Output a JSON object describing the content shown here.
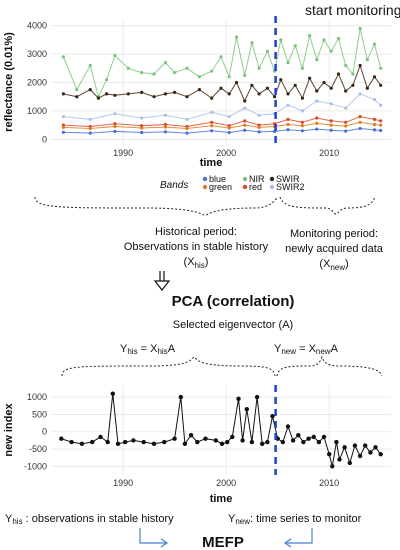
{
  "header": {
    "start_monitoring": "start monitoring"
  },
  "chart_data": [
    {
      "type": "line",
      "xlabel": "time",
      "ylabel": "reflectance (0.01%)",
      "x_ticks": [
        "1990",
        "2000",
        "2010"
      ],
      "y_ticks": [
        "0",
        "1000",
        "2000",
        "3000",
        "4000"
      ],
      "xlim": [
        1983,
        2016
      ],
      "ylim": [
        -200,
        4200
      ],
      "vline_x": 2004.8,
      "legend": {
        "title": "Bands",
        "placement": "bottom",
        "entries": [
          "blue",
          "green",
          "red",
          "NIR",
          "SWIR",
          "SWIR2"
        ]
      },
      "colors": {
        "blue": "#4a6fd8",
        "green": "#e07b20",
        "red": "#d94a2a",
        "NIR": "#7cc47a",
        "SWIR": "#3a2410",
        "SWIR2": "#a9c0e6",
        "vline": "#1f3fcf"
      },
      "series": [
        {
          "name": "NIR",
          "x": [
            1984.2,
            1985.5,
            1986.8,
            1987.6,
            1988.4,
            1989.2,
            1990.5,
            1991.8,
            1993.0,
            1994.1,
            1995.0,
            1996.2,
            1997.4,
            1998.6,
            1999.5,
            2000.3,
            2001.0,
            2001.8,
            2002.5,
            2003.2,
            2004.0,
            2004.7,
            2005.3,
            2006.0,
            2006.7,
            2007.4,
            2008.1,
            2008.8,
            2009.5,
            2010.2,
            2010.9,
            2011.6,
            2012.3,
            2013.0,
            2013.7,
            2014.4,
            2015.0
          ],
          "values": [
            2900,
            1750,
            2600,
            1500,
            2100,
            2950,
            2500,
            2350,
            2300,
            2700,
            2350,
            2500,
            2200,
            2400,
            2900,
            2200,
            3600,
            2250,
            3400,
            2500,
            3100,
            2400,
            3500,
            2700,
            3300,
            2500,
            3650,
            2800,
            3500,
            3100,
            3550,
            2600,
            2300,
            3900,
            2800,
            3350,
            2500
          ]
        },
        {
          "name": "SWIR",
          "x": [
            1984.2,
            1985.5,
            1986.8,
            1987.6,
            1988.4,
            1989.2,
            1990.5,
            1991.8,
            1993.0,
            1994.1,
            1995.0,
            1996.2,
            1997.4,
            1998.6,
            1999.5,
            2000.3,
            2001.0,
            2001.8,
            2002.5,
            2003.2,
            2004.0,
            2004.7,
            2005.3,
            2006.0,
            2006.7,
            2007.4,
            2008.1,
            2008.8,
            2009.5,
            2010.2,
            2010.9,
            2011.6,
            2012.3,
            2013.0,
            2013.7,
            2014.4,
            2015.0
          ],
          "values": [
            1600,
            1500,
            1750,
            1450,
            1600,
            1550,
            1600,
            1650,
            1500,
            1600,
            1650,
            1500,
            1750,
            1450,
            1800,
            1600,
            2000,
            1350,
            1900,
            1600,
            1800,
            1500,
            2100,
            1600,
            1900,
            1450,
            2150,
            1700,
            2000,
            1800,
            2300,
            1700,
            1900,
            2600,
            1800,
            2200,
            1900
          ]
        },
        {
          "name": "SWIR2",
          "x": [
            1984.2,
            1986.8,
            1989.2,
            1991.8,
            1994.1,
            1996.2,
            1998.6,
            2000.3,
            2001.8,
            2003.2,
            2004.7,
            2006.0,
            2007.4,
            2008.8,
            2010.2,
            2011.6,
            2013.0,
            2014.4,
            2015.0
          ],
          "values": [
            800,
            700,
            900,
            750,
            850,
            700,
            950,
            800,
            1100,
            850,
            900,
            1200,
            1000,
            1350,
            1250,
            1100,
            1600,
            1400,
            1200
          ]
        },
        {
          "name": "red",
          "x": [
            1984.2,
            1986.8,
            1989.2,
            1991.8,
            1994.1,
            1996.2,
            1998.6,
            2000.3,
            2001.8,
            2003.2,
            2004.7,
            2006.0,
            2007.4,
            2008.8,
            2010.2,
            2011.6,
            2013.0,
            2014.4,
            2015.0
          ],
          "values": [
            500,
            450,
            550,
            480,
            520,
            450,
            600,
            480,
            650,
            500,
            550,
            700,
            600,
            750,
            650,
            600,
            800,
            700,
            650
          ]
        },
        {
          "name": "green",
          "x": [
            1984.2,
            1986.8,
            1989.2,
            1991.8,
            1994.1,
            1996.2,
            1998.6,
            2000.3,
            2001.8,
            2003.2,
            2004.7,
            2006.0,
            2007.4,
            2008.8,
            2010.2,
            2011.6,
            2013.0,
            2014.4,
            2015.0
          ],
          "values": [
            420,
            380,
            450,
            400,
            430,
            380,
            480,
            400,
            500,
            420,
            450,
            520,
            480,
            560,
            500,
            470,
            600,
            520,
            500
          ]
        },
        {
          "name": "blue",
          "x": [
            1984.2,
            1986.8,
            1989.2,
            1991.8,
            1994.1,
            1996.2,
            1998.6,
            2000.3,
            2001.8,
            2003.2,
            2004.7,
            2006.0,
            2007.4,
            2008.8,
            2010.2,
            2011.6,
            2013.0,
            2014.4,
            2015.0
          ],
          "values": [
            250,
            220,
            280,
            240,
            260,
            220,
            300,
            240,
            320,
            260,
            280,
            340,
            300,
            360,
            320,
            290,
            380,
            330,
            310
          ]
        }
      ]
    },
    {
      "type": "line",
      "xlabel": "time",
      "ylabel": "new index",
      "x_ticks": [
        "1990",
        "2000",
        "2010"
      ],
      "y_ticks": [
        "-1000",
        "-500",
        "0",
        "500",
        "1000"
      ],
      "xlim": [
        1983,
        2016
      ],
      "ylim": [
        -1250,
        1350
      ],
      "vline_x": 2004.8,
      "colors": {
        "line": "#111111",
        "vline": "#1f3fcf"
      },
      "series": [
        {
          "x": [
            1984.0,
            1985.0,
            1986.0,
            1987.0,
            1987.8,
            1988.5,
            1989.0,
            1989.5,
            1990.2,
            1991.0,
            1992.0,
            1993.0,
            1994.0,
            1995.0,
            1995.6,
            1996.0,
            1996.6,
            1997.2,
            1998.0,
            1999.0,
            1999.6,
            2000.1,
            2000.6,
            2001.2,
            2001.6,
            2002.0,
            2002.5,
            2003.0,
            2003.5,
            2004.0,
            2004.5,
            2005.0,
            2005.5,
            2006.0,
            2006.5,
            2007.0,
            2007.5,
            2008.0,
            2008.5,
            2009.0,
            2009.5,
            2010.0,
            2010.3,
            2010.7,
            2011.0,
            2011.5,
            2012.0,
            2012.5,
            2013.0,
            2013.5,
            2014.0,
            2014.5,
            2015.0
          ],
          "values": [
            -200,
            -300,
            -350,
            -300,
            -150,
            -300,
            1100,
            -350,
            -300,
            -250,
            -300,
            -350,
            -300,
            -200,
            1000,
            -350,
            -100,
            -300,
            -200,
            -250,
            -350,
            -300,
            -150,
            950,
            -250,
            650,
            -300,
            1000,
            -350,
            -300,
            450,
            -200,
            -300,
            150,
            -250,
            -100,
            -300,
            -200,
            -150,
            -300,
            -150,
            -650,
            -1000,
            -300,
            -800,
            -450,
            -900,
            -400,
            -700,
            -400,
            -600,
            -450,
            -650
          ]
        }
      ]
    }
  ],
  "diagram": {
    "historical_period": [
      "Historical period:",
      "Observations in stable history"
    ],
    "historical_symbol": {
      "base": "(X",
      "sub": "his",
      "close": ")"
    },
    "monitoring_period": [
      "Monitoring period:",
      "newly acquired data"
    ],
    "monitoring_symbol": {
      "base": "(X",
      "sub": "new",
      "close": ")"
    },
    "pca_title": "PCA (correlation)",
    "eigenvector": "Selected eigenvector (A)",
    "eq_his": {
      "lhs": "Y",
      "lhs_sub": "his",
      "mid": " =  X",
      "mid_sub": "his",
      "rhs": "A"
    },
    "eq_new": {
      "lhs": "Y",
      "lhs_sub": "new",
      "mid": " = X",
      "mid_sub": "new",
      "rhs": "A"
    },
    "y_his_caption": {
      "base": "Y",
      "sub": "his",
      "rest": " : observations in stable history"
    },
    "y_new_caption": {
      "base": "Y",
      "sub": "new",
      "rest": ":  time series to monitor"
    },
    "mefp": "MEFP",
    "colors": {
      "arrow": "#4a7fd0"
    }
  }
}
